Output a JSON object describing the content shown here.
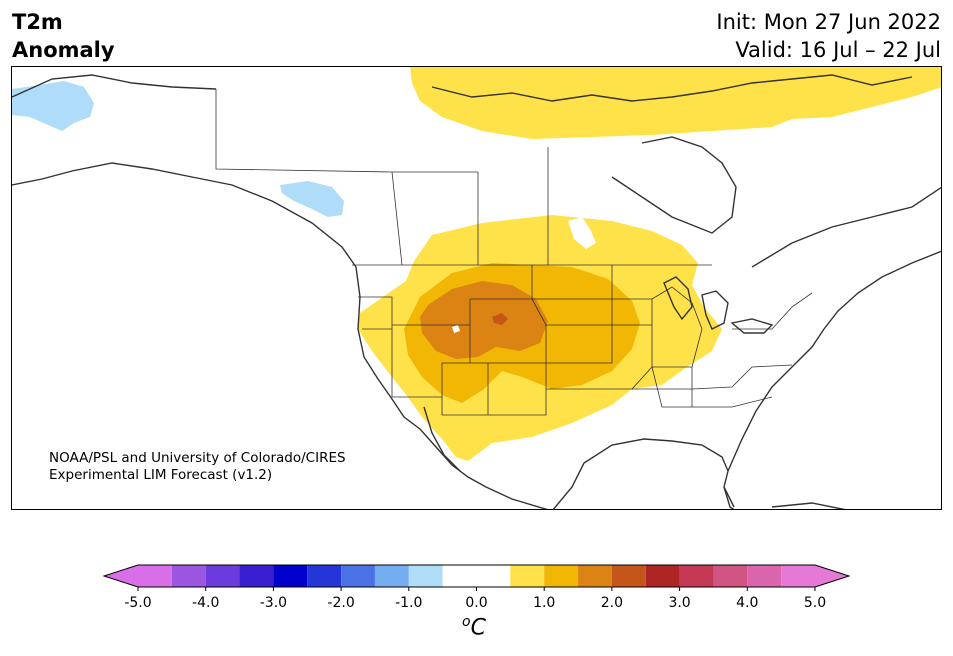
{
  "title": {
    "variable": "T2m",
    "quantity": "Anomaly",
    "init": "Init: Mon 27 Jun 2022",
    "valid": "Valid: 16 Jul – 22 Jul"
  },
  "credit": {
    "line1": "NOAA/PSL and University of Colorado/CIRES",
    "line2": "Experimental LIM Forecast (v1.2)"
  },
  "colorbar": {
    "unit_base": "C",
    "unit_sup": "o",
    "levels": [
      -5.0,
      -4.5,
      -4.0,
      -3.5,
      -3.0,
      -2.5,
      -2.0,
      -1.5,
      -1.0,
      -0.5,
      0.5,
      1.0,
      1.5,
      2.0,
      2.5,
      3.0,
      3.5,
      4.0,
      4.5,
      5.0
    ],
    "tick_labels": [
      "-5.0",
      "-4.0",
      "-3.0",
      "-2.0",
      "-1.0",
      "0.0",
      "1.0",
      "2.0",
      "3.0",
      "4.0",
      "5.0"
    ],
    "colors": [
      "#d86fe8",
      "#9b55df",
      "#6b3bdc",
      "#3a1fd0",
      "#0000cc",
      "#2436d8",
      "#4a72e4",
      "#74adf0",
      "#aedcf9",
      "#ffffff",
      "#ffe14a",
      "#f2b705",
      "#db8413",
      "#c4561a",
      "#ae2525",
      "#c43a55",
      "#d05583",
      "#da65ad",
      "#e679d6"
    ],
    "under_color": "#d86fe8",
    "over_color": "#e679d6"
  },
  "map": {
    "region": "North America",
    "anomaly_regions": [
      {
        "location": "Alaska north coast",
        "category": "-1.0 to -0.5",
        "color": "#aedcf9"
      },
      {
        "location": "Yukon / northern British Columbia",
        "category": "-1.0 to -0.5",
        "color": "#aedcf9"
      },
      {
        "location": "Canadian Arctic Archipelago",
        "category": "0.5 to 1.0",
        "color": "#ffe14a"
      },
      {
        "location": "Western and Central United States",
        "category": "0.5 to 1.0",
        "color": "#ffe14a"
      },
      {
        "location": "Central Rockies and Great Plains",
        "category": "1.0 to 1.5",
        "color": "#f2b705"
      },
      {
        "location": "Wyoming / Colorado / Utah",
        "category": "1.5 to 2.0",
        "color": "#db8413"
      },
      {
        "location": "Wyoming core",
        "category": "2.0 to 2.5",
        "color": "#c4561a"
      }
    ]
  }
}
